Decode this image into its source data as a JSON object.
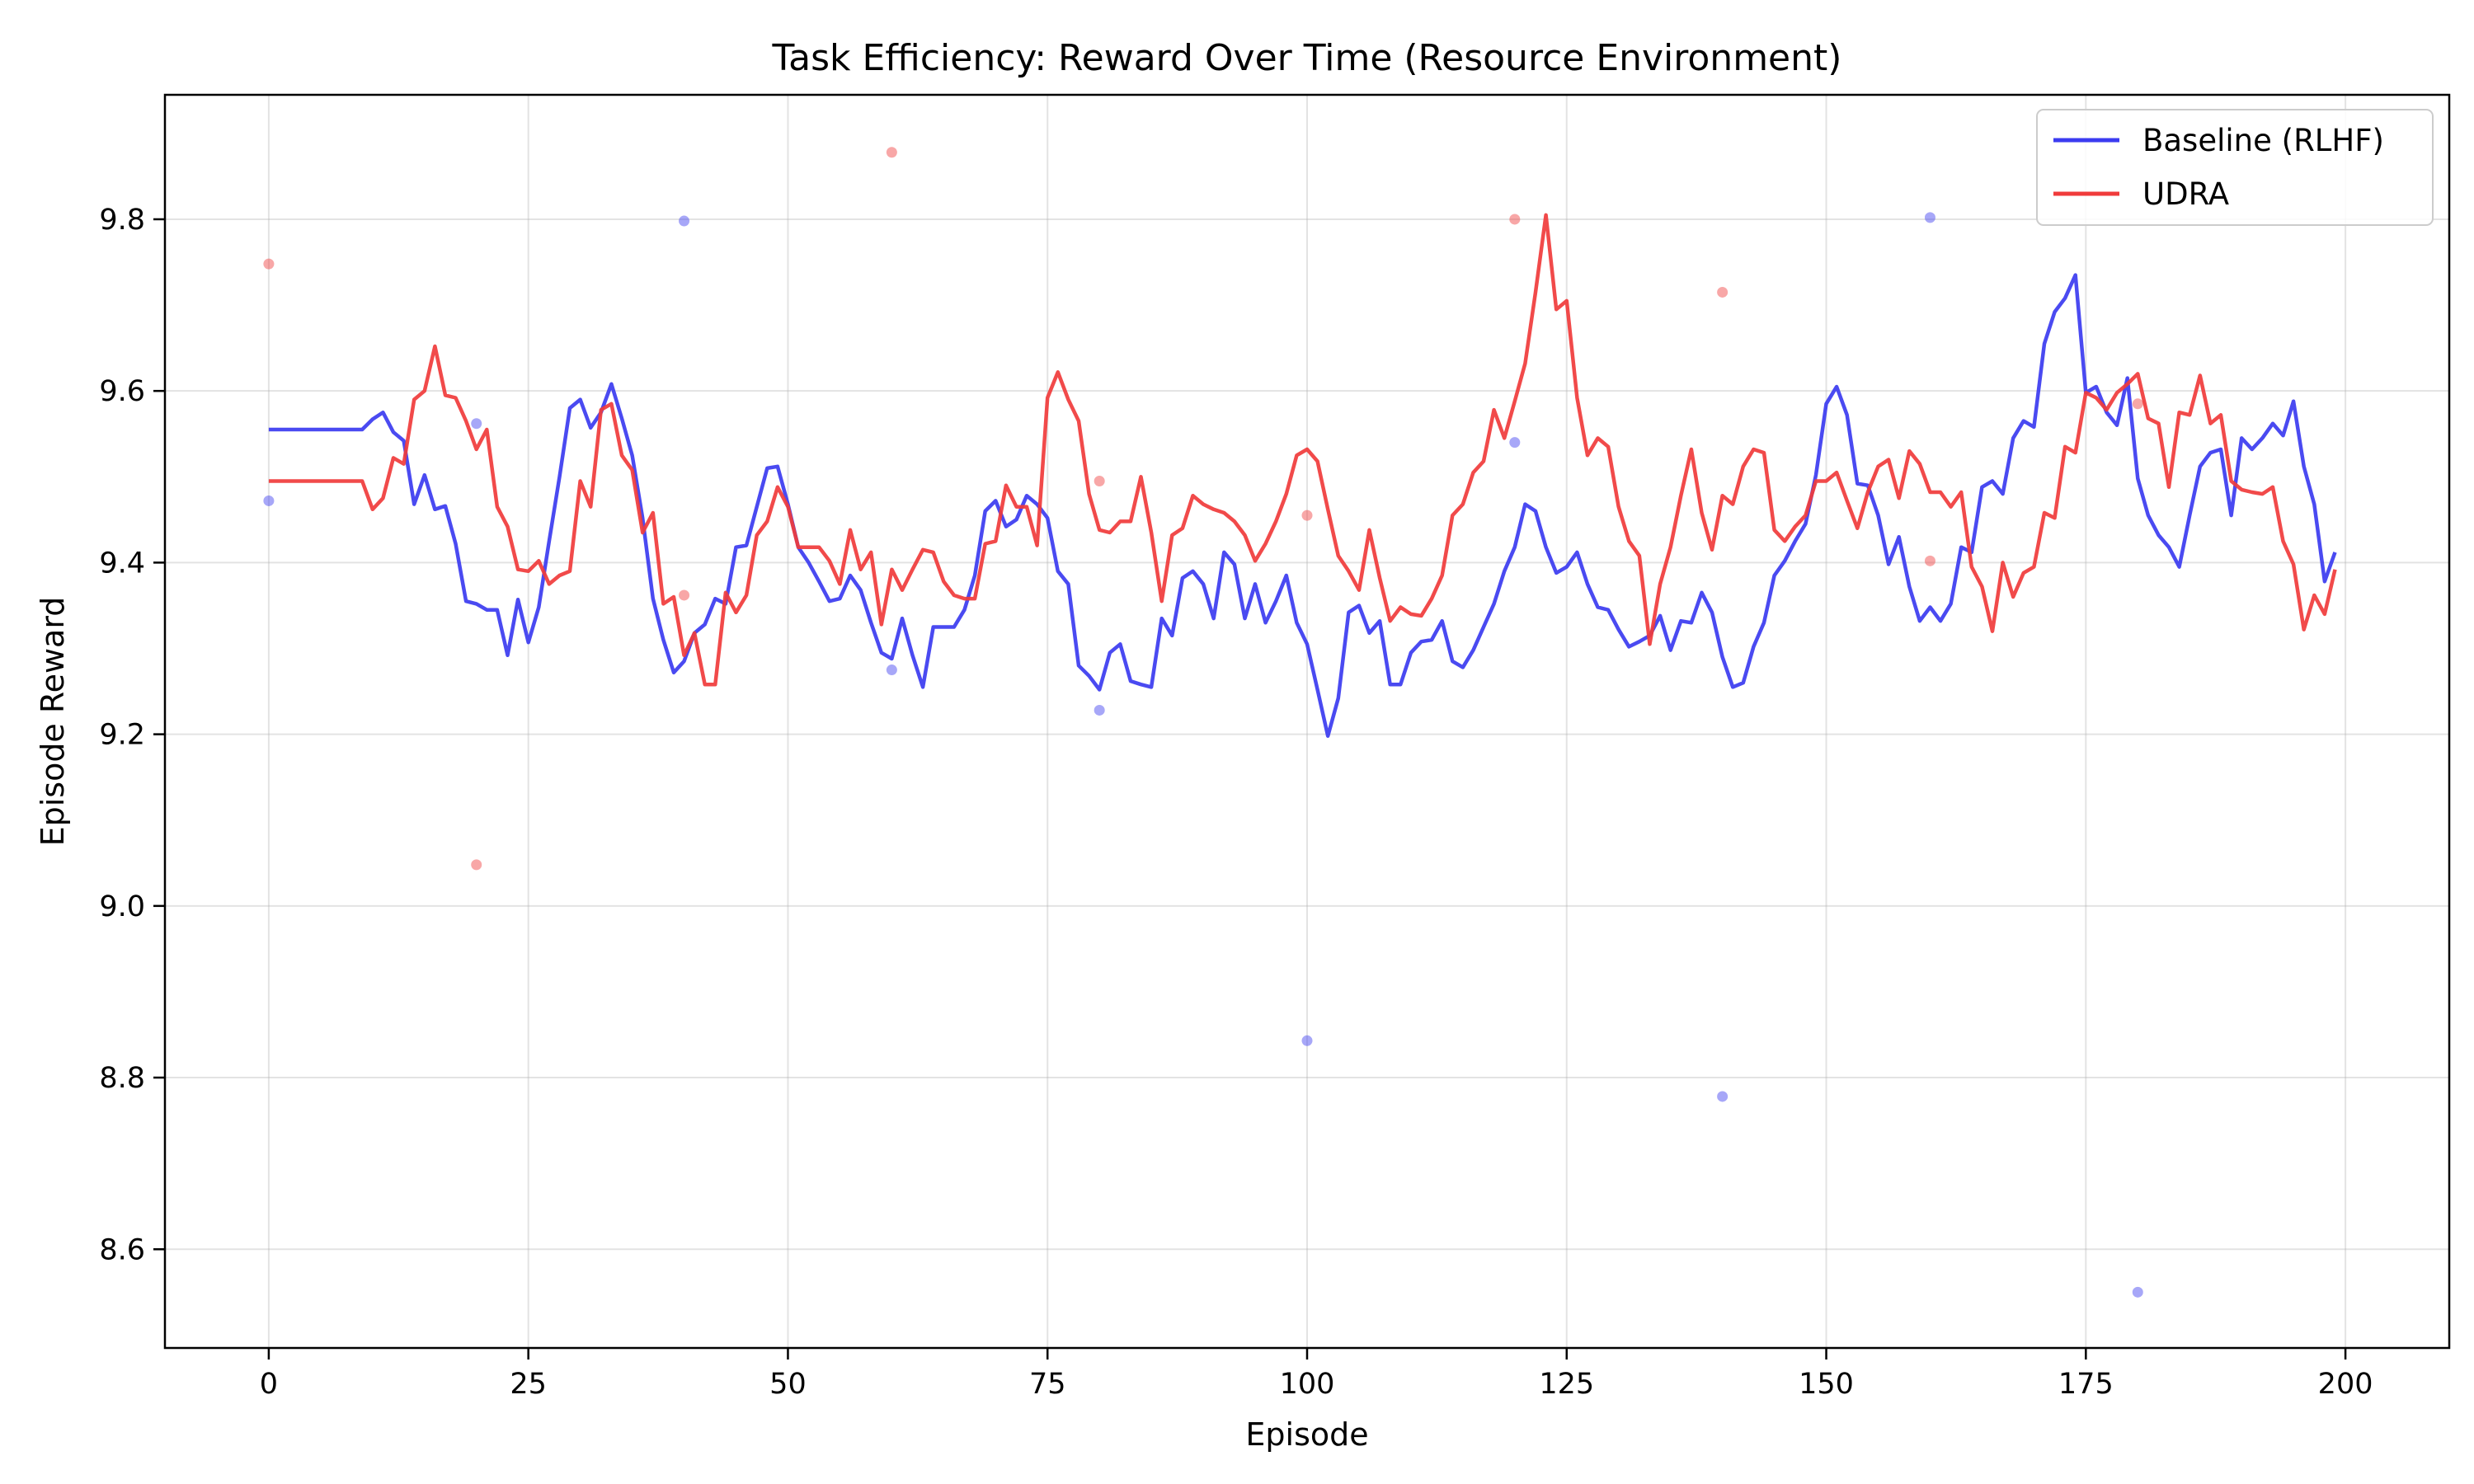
{
  "chart_data": {
    "type": "line",
    "title": "Task Efficiency: Reward Over Time (Resource Environment)",
    "xlabel": "Episode",
    "ylabel": "Episode Reward",
    "xlim": [
      -10,
      210
    ],
    "ylim": [
      8.485,
      9.945
    ],
    "xticks": [
      0,
      25,
      50,
      75,
      100,
      125,
      150,
      175,
      200
    ],
    "yticks": [
      8.6,
      8.8,
      9.0,
      9.2,
      9.4,
      9.6,
      9.8
    ],
    "xtick_labels": [
      "0",
      "25",
      "50",
      "75",
      "100",
      "125",
      "150",
      "175",
      "200"
    ],
    "ytick_labels": [
      "8.6",
      "8.8",
      "9.0",
      "9.2",
      "9.4",
      "9.6",
      "9.8"
    ],
    "grid": true,
    "legend_position": "top-right",
    "colors": {
      "baseline": "#3b3bf0",
      "udra": "#f03b3b"
    },
    "x": [
      0,
      1,
      2,
      3,
      4,
      5,
      6,
      7,
      8,
      9,
      10,
      11,
      12,
      13,
      14,
      15,
      16,
      17,
      18,
      19,
      20,
      21,
      22,
      23,
      24,
      25,
      26,
      27,
      28,
      29,
      30,
      31,
      32,
      33,
      34,
      35,
      36,
      37,
      38,
      39,
      40,
      41,
      42,
      43,
      44,
      45,
      46,
      47,
      48,
      49,
      50,
      51,
      52,
      53,
      54,
      55,
      56,
      57,
      58,
      59,
      60,
      61,
      62,
      63,
      64,
      65,
      66,
      67,
      68,
      69,
      70,
      71,
      72,
      73,
      74,
      75,
      76,
      77,
      78,
      79,
      80,
      81,
      82,
      83,
      84,
      85,
      86,
      87,
      88,
      89,
      90,
      91,
      92,
      93,
      94,
      95,
      96,
      97,
      98,
      99,
      100,
      101,
      102,
      103,
      104,
      105,
      106,
      107,
      108,
      109,
      110,
      111,
      112,
      113,
      114,
      115,
      116,
      117,
      118,
      119,
      120,
      121,
      122,
      123,
      124,
      125,
      126,
      127,
      128,
      129,
      130,
      131,
      132,
      133,
      134,
      135,
      136,
      137,
      138,
      139,
      140,
      141,
      142,
      143,
      144,
      145,
      146,
      147,
      148,
      149,
      150,
      151,
      152,
      153,
      154,
      155,
      156,
      157,
      158,
      159,
      160,
      161,
      162,
      163,
      164,
      165,
      166,
      167,
      168,
      169,
      170,
      171,
      172,
      173,
      174,
      175,
      176,
      177,
      178,
      179,
      180,
      181,
      182,
      183,
      184,
      185,
      186,
      187,
      188,
      189,
      190,
      191,
      192,
      193,
      194,
      195,
      196,
      197,
      198,
      199
    ],
    "series": [
      {
        "name": "Baseline (RLHF)",
        "values": [
          9.555,
          9.555,
          9.555,
          9.555,
          9.555,
          9.555,
          9.555,
          9.555,
          9.555,
          9.555,
          9.567,
          9.575,
          9.552,
          9.542,
          9.468,
          9.502,
          9.462,
          9.466,
          9.422,
          9.355,
          9.352,
          9.345,
          9.345,
          9.292,
          9.357,
          9.307,
          9.348,
          9.425,
          9.5,
          9.58,
          9.59,
          9.557,
          9.575,
          9.608,
          9.568,
          9.525,
          9.452,
          9.358,
          9.31,
          9.272,
          9.285,
          9.318,
          9.328,
          9.358,
          9.352,
          9.418,
          9.42,
          9.465,
          9.51,
          9.512,
          9.468,
          9.418,
          9.4,
          9.378,
          9.355,
          9.358,
          9.385,
          9.368,
          9.33,
          9.295,
          9.288,
          9.335,
          9.292,
          9.255,
          9.325,
          9.325,
          9.325,
          9.345,
          9.385,
          9.46,
          9.472,
          9.442,
          9.45,
          9.478,
          9.468,
          9.452,
          9.39,
          9.375,
          9.28,
          9.268,
          9.252,
          9.295,
          9.305,
          9.262,
          9.258,
          9.255,
          9.335,
          9.315,
          9.382,
          9.39,
          9.375,
          9.335,
          9.412,
          9.398,
          9.335,
          9.375,
          9.33,
          9.355,
          9.385,
          9.33,
          9.305,
          9.252,
          9.198,
          9.242,
          9.342,
          9.35,
          9.318,
          9.332,
          9.258,
          9.258,
          9.295,
          9.308,
          9.31,
          9.332,
          9.285,
          9.278,
          9.298,
          9.325,
          9.352,
          9.39,
          9.418,
          9.468,
          9.46,
          9.418,
          9.388,
          9.395,
          9.412,
          9.375,
          9.348,
          9.345,
          9.322,
          9.302,
          9.308,
          9.315,
          9.338,
          9.298,
          9.332,
          9.33,
          9.365,
          9.342,
          9.29,
          9.255,
          9.26,
          9.302,
          9.33,
          9.385,
          9.402,
          9.425,
          9.445,
          9.502,
          9.585,
          9.605,
          9.572,
          9.492,
          9.49,
          9.455,
          9.398,
          9.43,
          9.372,
          9.332,
          9.348,
          9.332,
          9.352,
          9.418,
          9.412,
          9.488,
          9.495,
          9.48,
          9.545,
          9.565,
          9.558,
          9.655,
          9.692,
          9.708,
          9.735,
          9.598,
          9.605,
          9.575,
          9.56,
          9.615,
          9.498,
          9.455,
          9.432,
          9.418,
          9.395,
          9.455,
          9.512,
          9.528,
          9.532,
          9.455,
          9.545,
          9.532,
          9.545,
          9.562,
          9.548,
          9.588,
          9.512,
          9.468,
          9.378,
          9.412
        ]
      },
      {
        "name": "UDRA",
        "values": [
          9.495,
          9.495,
          9.495,
          9.495,
          9.495,
          9.495,
          9.495,
          9.495,
          9.495,
          9.495,
          9.462,
          9.475,
          9.522,
          9.515,
          9.59,
          9.6,
          9.652,
          9.595,
          9.592,
          9.565,
          9.532,
          9.555,
          9.465,
          9.442,
          9.392,
          9.39,
          9.402,
          9.375,
          9.385,
          9.39,
          9.495,
          9.465,
          9.578,
          9.585,
          9.525,
          9.508,
          9.435,
          9.458,
          9.352,
          9.36,
          9.292,
          9.318,
          9.258,
          9.258,
          9.365,
          9.342,
          9.362,
          9.432,
          9.448,
          9.488,
          9.465,
          9.418,
          9.418,
          9.418,
          9.402,
          9.375,
          9.438,
          9.392,
          9.412,
          9.328,
          9.392,
          9.368,
          9.392,
          9.415,
          9.412,
          9.378,
          9.362,
          9.358,
          9.358,
          9.422,
          9.425,
          9.49,
          9.465,
          9.465,
          9.42,
          9.592,
          9.622,
          9.59,
          9.565,
          9.48,
          9.438,
          9.435,
          9.448,
          9.448,
          9.5,
          9.435,
          9.355,
          9.432,
          9.44,
          9.478,
          9.468,
          9.462,
          9.458,
          9.448,
          9.432,
          9.402,
          9.422,
          9.448,
          9.48,
          9.525,
          9.532,
          9.518,
          9.462,
          9.408,
          9.39,
          9.368,
          9.438,
          9.382,
          9.332,
          9.348,
          9.34,
          9.338,
          9.358,
          9.385,
          9.455,
          9.468,
          9.505,
          9.518,
          9.578,
          9.545,
          9.588,
          9.632,
          9.715,
          9.805,
          9.695,
          9.705,
          9.592,
          9.525,
          9.545,
          9.535,
          9.465,
          9.425,
          9.408,
          9.305,
          9.375,
          9.418,
          9.478,
          9.532,
          9.458,
          9.415,
          9.478,
          9.468,
          9.512,
          9.532,
          9.528,
          9.438,
          9.425,
          9.442,
          9.455,
          9.495,
          9.495,
          9.505,
          9.472,
          9.44,
          9.482,
          9.512,
          9.52,
          9.475,
          9.53,
          9.515,
          9.482,
          9.482,
          9.465,
          9.482,
          9.395,
          9.372,
          9.32,
          9.4,
          9.36,
          9.388,
          9.395,
          9.458,
          9.452,
          9.535,
          9.528,
          9.598,
          9.592,
          9.578,
          9.598,
          9.608,
          9.62,
          9.568,
          9.562,
          9.488,
          9.575,
          9.572,
          9.618,
          9.562,
          9.572,
          9.495,
          9.485,
          9.482,
          9.48,
          9.488,
          9.425,
          9.398,
          9.322,
          9.362,
          9.34,
          9.392
        ]
      }
    ],
    "scatter_series": [
      {
        "x": [
          0,
          20,
          40,
          60,
          80,
          100,
          120,
          140,
          160,
          180
        ],
        "values": [
          9.472,
          9.562,
          9.798,
          9.275,
          9.228,
          8.843,
          9.54,
          8.778,
          9.802,
          8.55
        ]
      },
      {
        "x": [
          0,
          20,
          40,
          60,
          80,
          100,
          120,
          140,
          160,
          180
        ],
        "values": [
          9.748,
          9.048,
          9.362,
          9.878,
          9.495,
          9.455,
          9.8,
          9.715,
          9.402,
          9.585
        ]
      }
    ]
  }
}
